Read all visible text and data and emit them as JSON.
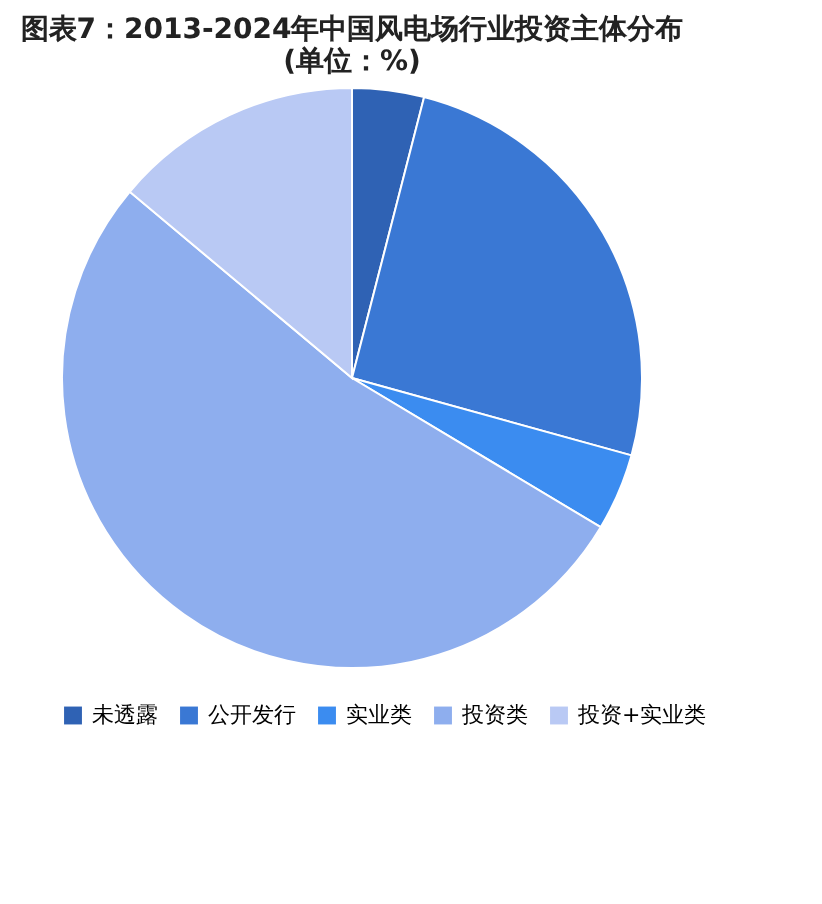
{
  "chart_data": {
    "type": "pie",
    "title": "图表7：2013-2024年中国风电场行业投资主体分布\n(单位：%)",
    "categories": [
      "未透露",
      "公开发行",
      "实业类",
      "投资类",
      "投资+实业类"
    ],
    "values": [
      4,
      25.3,
      4.3,
      52.5,
      13.9
    ],
    "colors": [
      "#2f62b4",
      "#3a78d4",
      "#3b8cf0",
      "#8eaeee",
      "#b9c9f4"
    ],
    "legend": "bottom"
  }
}
